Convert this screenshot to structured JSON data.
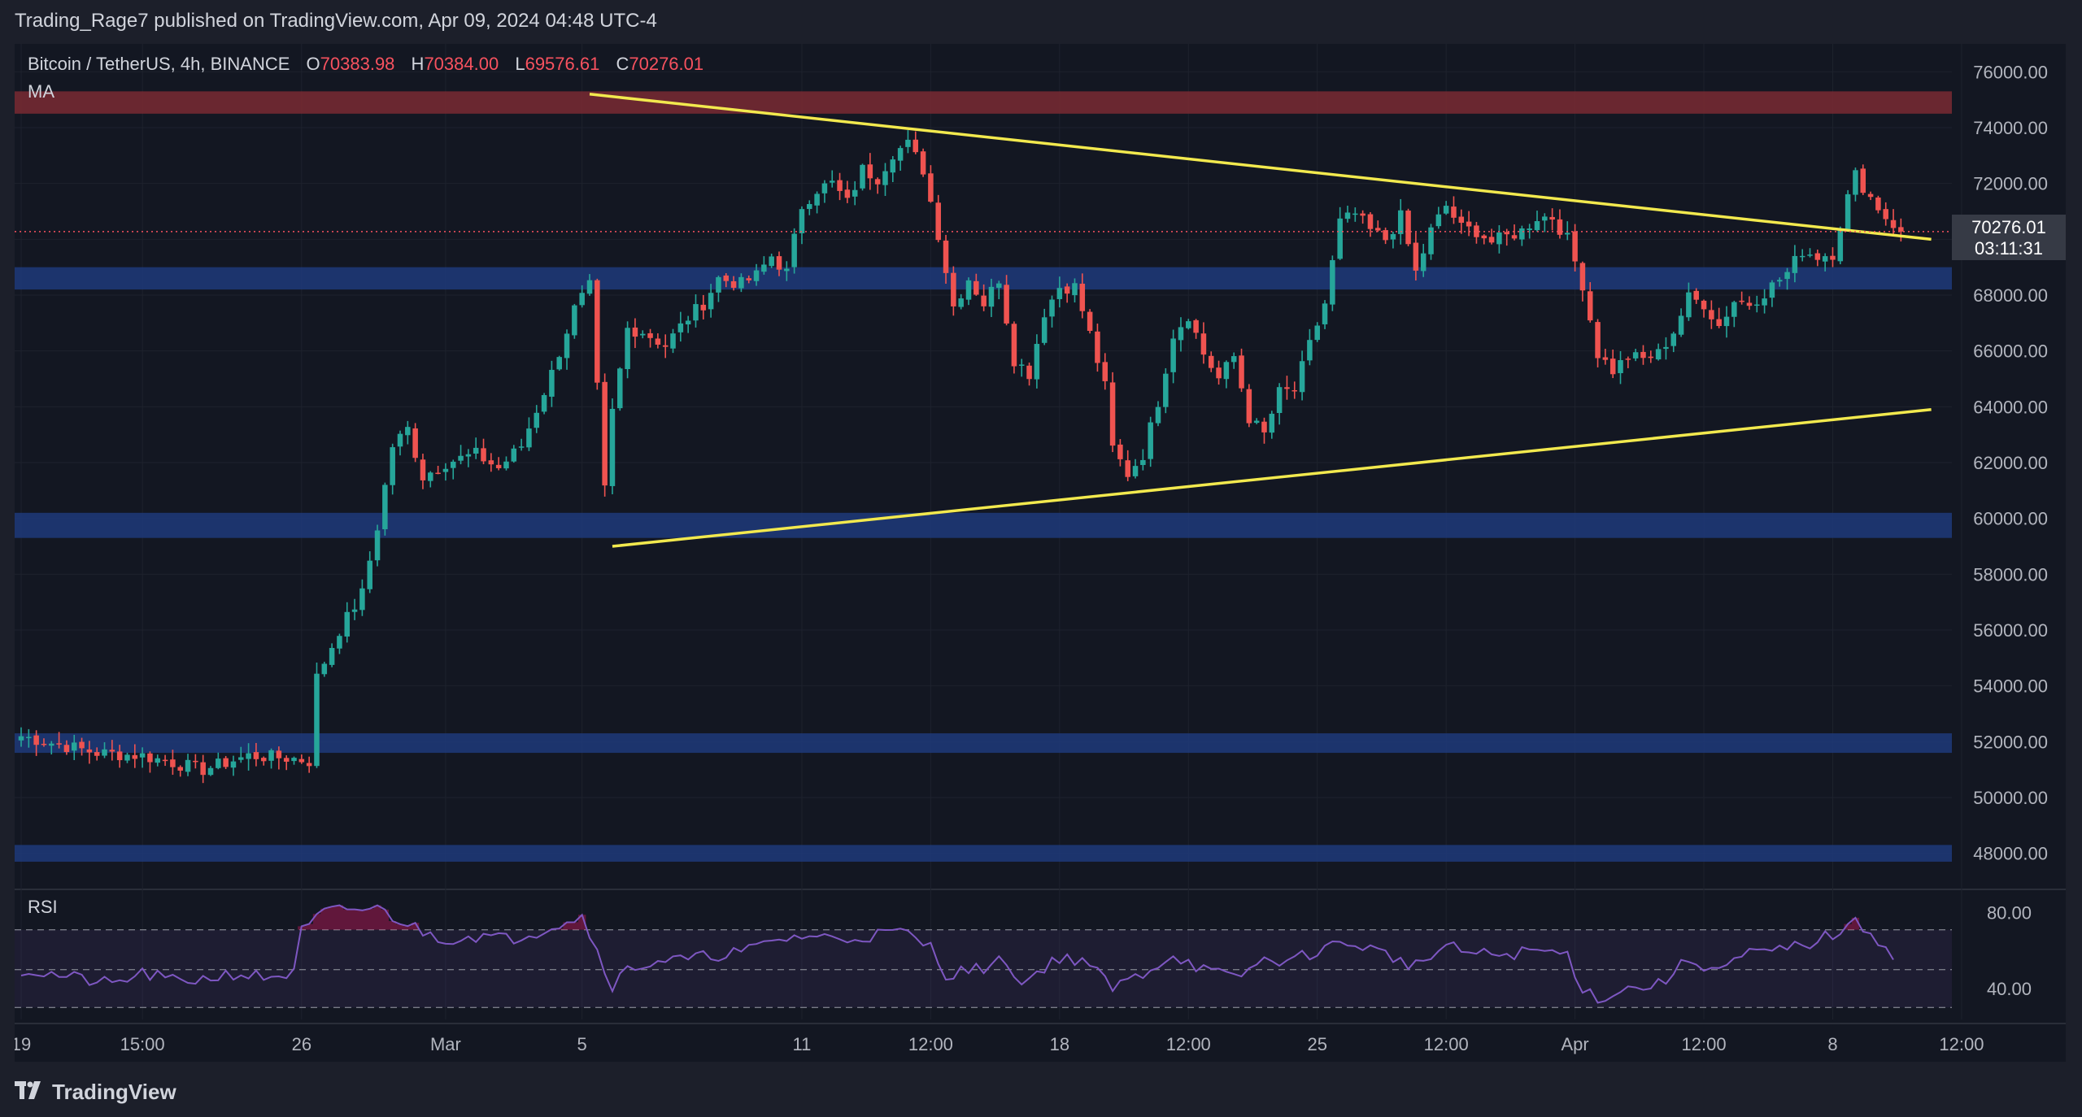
{
  "header": {
    "text": "Trading_Rage7 published on TradingView.com, Apr 09, 2024 04:48 UTC-4"
  },
  "legend": {
    "symbol": "Bitcoin / TetherUS, 4h, BINANCE",
    "open_key": "O",
    "open": "70383.98",
    "high_key": "H",
    "high": "70384.00",
    "low_key": "L",
    "low": "69576.61",
    "close_key": "C",
    "close": "70276.01",
    "ma_label": "MA",
    "rsi_label": "RSI"
  },
  "price_tag": {
    "price": "70276.01",
    "countdown": "03:11:31"
  },
  "footer": {
    "brand": "TradingView",
    "logo_icon": "tradingview-logo-icon"
  },
  "colors": {
    "background": "#131722",
    "frame": "#1c1f2a",
    "up_candle": "#26a69a",
    "down_candle": "#ef5350",
    "trendline": "#f2e94e",
    "support_zone": "#1e3a7a",
    "resistance_zone": "#7a2a33",
    "rsi_line": "#7e57c2"
  },
  "chart_data": [
    {
      "type": "candlestick",
      "title": "Bitcoin / TetherUS, 4h, BINANCE",
      "xlabel": "",
      "ylabel": "",
      "ylim": [
        47000,
        77000
      ],
      "ytick_labels": [
        "76000.00",
        "74000.00",
        "72000.00",
        "70000.00",
        "68000.00",
        "66000.00",
        "64000.00",
        "62000.00",
        "60000.00",
        "58000.00",
        "56000.00",
        "54000.00",
        "52000.00",
        "50000.00",
        "48000.00"
      ],
      "yticks": [
        76000,
        74000,
        72000,
        70000,
        68000,
        66000,
        64000,
        62000,
        60000,
        58000,
        56000,
        54000,
        52000,
        50000,
        48000
      ],
      "xtick_labels": [
        "19",
        "15:00",
        "26",
        "Mar",
        "5",
        "11",
        "12:00",
        "18",
        "12:00",
        "25",
        "12:00",
        "Apr",
        "12:00",
        "8",
        "12:00"
      ],
      "xtick_bars": [
        0,
        16,
        37,
        56,
        74,
        103,
        120,
        137,
        154,
        171,
        188,
        205,
        222,
        239,
        256
      ],
      "n_bars": 249,
      "anchors": [
        [
          0,
          52200
        ],
        [
          10,
          51600
        ],
        [
          16,
          51500
        ],
        [
          24,
          51000
        ],
        [
          30,
          51500
        ],
        [
          36,
          51400
        ],
        [
          38,
          51300
        ],
        [
          39,
          54300
        ],
        [
          42,
          56000
        ],
        [
          45,
          57300
        ],
        [
          47,
          59700
        ],
        [
          49,
          62600
        ],
        [
          51,
          63200
        ],
        [
          53,
          61500
        ],
        [
          56,
          62000
        ],
        [
          60,
          62300
        ],
        [
          63,
          61800
        ],
        [
          66,
          62600
        ],
        [
          70,
          65200
        ],
        [
          73,
          67500
        ],
        [
          75,
          68300
        ],
        [
          77,
          61000
        ],
        [
          78,
          63800
        ],
        [
          80,
          66800
        ],
        [
          82,
          66700
        ],
        [
          85,
          66200
        ],
        [
          88,
          67200
        ],
        [
          90,
          67700
        ],
        [
          92,
          68600
        ],
        [
          95,
          68400
        ],
        [
          97,
          68700
        ],
        [
          99,
          69400
        ],
        [
          101,
          68800
        ],
        [
          103,
          71200
        ],
        [
          105,
          71800
        ],
        [
          107,
          72000
        ],
        [
          109,
          71300
        ],
        [
          111,
          72500
        ],
        [
          113,
          72200
        ],
        [
          115,
          73100
        ],
        [
          117,
          73400
        ],
        [
          119,
          72500
        ],
        [
          121,
          70200
        ],
        [
          123,
          67600
        ],
        [
          125,
          68600
        ],
        [
          127,
          67700
        ],
        [
          129,
          68600
        ],
        [
          131,
          65700
        ],
        [
          133,
          65200
        ],
        [
          135,
          67400
        ],
        [
          137,
          68300
        ],
        [
          139,
          68300
        ],
        [
          141,
          66600
        ],
        [
          143,
          64700
        ],
        [
          144,
          62500
        ],
        [
          146,
          61600
        ],
        [
          148,
          62300
        ],
        [
          150,
          64200
        ],
        [
          152,
          66600
        ],
        [
          154,
          67300
        ],
        [
          156,
          65900
        ],
        [
          158,
          65000
        ],
        [
          160,
          65800
        ],
        [
          162,
          63600
        ],
        [
          164,
          63000
        ],
        [
          166,
          64500
        ],
        [
          168,
          64600
        ],
        [
          170,
          66200
        ],
        [
          172,
          67700
        ],
        [
          174,
          70600
        ],
        [
          176,
          70900
        ],
        [
          178,
          70300
        ],
        [
          180,
          70000
        ],
        [
          182,
          70800
        ],
        [
          184,
          68800
        ],
        [
          186,
          70300
        ],
        [
          188,
          71200
        ],
        [
          190,
          70400
        ],
        [
          192,
          70300
        ],
        [
          194,
          69900
        ],
        [
          196,
          70100
        ],
        [
          198,
          70300
        ],
        [
          200,
          70800
        ],
        [
          202,
          70800
        ],
        [
          204,
          70000
        ],
        [
          206,
          68400
        ],
        [
          208,
          65900
        ],
        [
          210,
          65300
        ],
        [
          212,
          65800
        ],
        [
          214,
          65700
        ],
        [
          216,
          65900
        ],
        [
          218,
          66700
        ],
        [
          220,
          67900
        ],
        [
          222,
          67700
        ],
        [
          224,
          66900
        ],
        [
          226,
          67800
        ],
        [
          228,
          67700
        ],
        [
          230,
          68100
        ],
        [
          233,
          68800
        ],
        [
          235,
          69600
        ],
        [
          237,
          69400
        ],
        [
          239,
          69500
        ],
        [
          241,
          71500
        ],
        [
          242,
          72300
        ],
        [
          244,
          71500
        ],
        [
          246,
          70800
        ],
        [
          248,
          70276
        ]
      ],
      "last_price": 70276.01,
      "countdown": "03:11:31",
      "support_zones": [
        [
          68200,
          69000
        ],
        [
          59300,
          60200
        ],
        [
          51600,
          52300
        ],
        [
          47700,
          48300
        ]
      ],
      "resistance_zones": [
        [
          74500,
          75300
        ]
      ],
      "trendlines": [
        {
          "from": [
            75,
            75200
          ],
          "to": [
            252,
            70000
          ]
        },
        {
          "from": [
            78,
            59000
          ],
          "to": [
            252,
            63900
          ]
        }
      ]
    },
    {
      "type": "line",
      "title": "RSI",
      "ylim": [
        28,
        88
      ],
      "yticks": [
        80,
        40
      ],
      "ytick_labels": [
        "80.00",
        "40.00"
      ],
      "guides": [
        71,
        50,
        30
      ],
      "anchors": [
        [
          0,
          50
        ],
        [
          8,
          45
        ],
        [
          12,
          42
        ],
        [
          16,
          48
        ],
        [
          20,
          44
        ],
        [
          24,
          45
        ],
        [
          28,
          48
        ],
        [
          32,
          46
        ],
        [
          36,
          48
        ],
        [
          37,
          70
        ],
        [
          40,
          80
        ],
        [
          44,
          82
        ],
        [
          47,
          82
        ],
        [
          50,
          76
        ],
        [
          53,
          70
        ],
        [
          56,
          66
        ],
        [
          60,
          68
        ],
        [
          64,
          66
        ],
        [
          68,
          70
        ],
        [
          72,
          76
        ],
        [
          74,
          78
        ],
        [
          76,
          60
        ],
        [
          78,
          42
        ],
        [
          80,
          50
        ],
        [
          84,
          55
        ],
        [
          88,
          55
        ],
        [
          92,
          58
        ],
        [
          96,
          60
        ],
        [
          100,
          66
        ],
        [
          104,
          68
        ],
        [
          108,
          66
        ],
        [
          112,
          68
        ],
        [
          116,
          70
        ],
        [
          120,
          62
        ],
        [
          122,
          48
        ],
        [
          126,
          50
        ],
        [
          130,
          55
        ],
        [
          132,
          42
        ],
        [
          136,
          55
        ],
        [
          140,
          56
        ],
        [
          144,
          40
        ],
        [
          148,
          48
        ],
        [
          152,
          58
        ],
        [
          156,
          50
        ],
        [
          160,
          45
        ],
        [
          164,
          55
        ],
        [
          168,
          55
        ],
        [
          172,
          62
        ],
        [
          176,
          64
        ],
        [
          180,
          58
        ],
        [
          184,
          52
        ],
        [
          188,
          62
        ],
        [
          192,
          58
        ],
        [
          196,
          58
        ],
        [
          200,
          60
        ],
        [
          204,
          58
        ],
        [
          206,
          40
        ],
        [
          208,
          35
        ],
        [
          212,
          40
        ],
        [
          216,
          42
        ],
        [
          220,
          55
        ],
        [
          224,
          50
        ],
        [
          228,
          58
        ],
        [
          232,
          60
        ],
        [
          236,
          64
        ],
        [
          240,
          70
        ],
        [
          242,
          74
        ],
        [
          244,
          70
        ],
        [
          246,
          62
        ],
        [
          247,
          58
        ]
      ]
    }
  ]
}
